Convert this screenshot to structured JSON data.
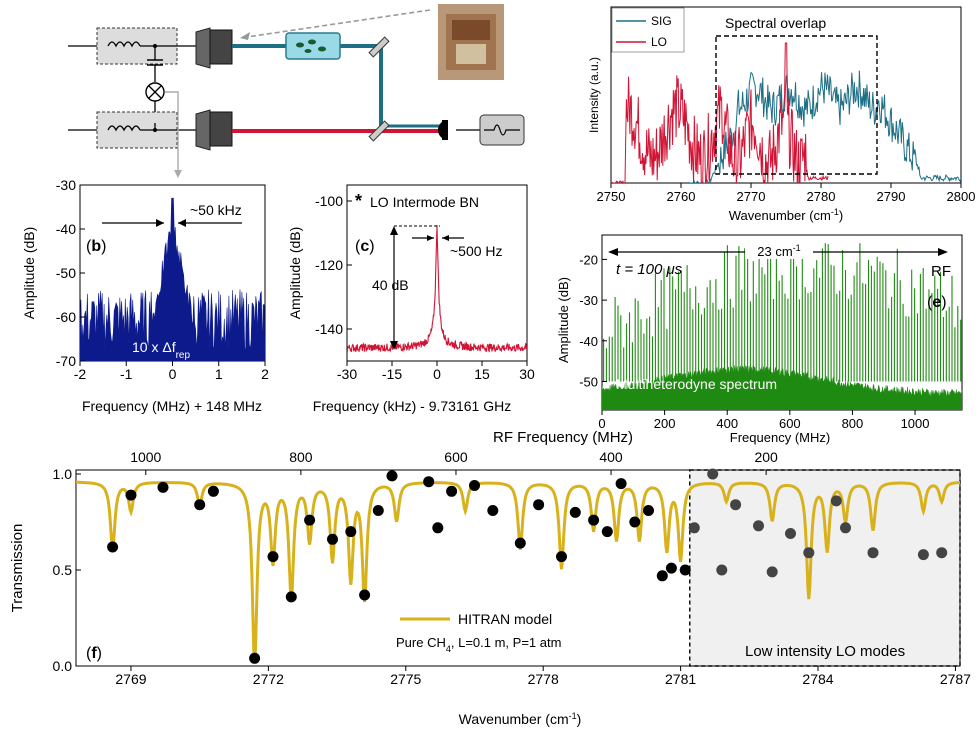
{
  "chart_data": [
    {
      "panel": "schematic",
      "type": "diagram",
      "legend": []
    },
    {
      "panel": "a",
      "type": "line",
      "xlabel": "Wavenumber (cm",
      "xlabel_sup": "-1",
      "xlabel_end": ")",
      "ylabel": "Intensity (a.u.)",
      "xlim": [
        2750,
        2800
      ],
      "xticks": [
        2750,
        2760,
        2770,
        2780,
        2790,
        2800
      ],
      "annotation": "Spectral overlap",
      "overlap_range": [
        2765,
        2788
      ],
      "series": [
        {
          "name": "SIG",
          "color": "#1e6e86"
        },
        {
          "name": "LO",
          "color": "#d11435"
        }
      ]
    },
    {
      "panel": "b",
      "type": "line",
      "label": "b",
      "xlabel": "Frequency (MHz) + 148 MHz",
      "ylabel": "Amplitude (dB)",
      "xlim": [
        -2,
        2
      ],
      "ylim": [
        -70,
        -30
      ],
      "xticks": [
        -2,
        -1,
        0,
        1,
        2
      ],
      "yticks": [
        -70,
        -60,
        -50,
        -40,
        -30
      ],
      "annotation_width": "~50 kHz",
      "annotation_inner": "10 x Δf",
      "annotation_inner_sub": "rep",
      "color": "#0d1a8c",
      "peak": {
        "x": 0,
        "y": -33
      },
      "floor": -62
    },
    {
      "panel": "c",
      "type": "line",
      "label": "c",
      "xlabel": "Frequency (kHz) - 9.73161 GHz",
      "ylabel": "Amplitude (dB)",
      "xlim": [
        -30,
        30
      ],
      "ylim": [
        -150,
        -95
      ],
      "xticks": [
        -30,
        -15,
        0,
        15,
        30
      ],
      "yticks": [
        -140,
        -120,
        -100
      ],
      "legend_title": "LO Intermode BN",
      "annotation_width": "~500 Hz",
      "annotation_height": "40 dB",
      "color": "#d11435",
      "peak": {
        "x": 0,
        "y": -107
      },
      "floor": -146
    },
    {
      "panel": "e",
      "type": "line",
      "label": "e",
      "xlabel": "Frequency (MHz)",
      "ylabel": "Amplitude (dB)",
      "top_axis_label": "RF Frequency (MHz)",
      "xlim": [
        0,
        1150
      ],
      "ylim": [
        -57,
        -14
      ],
      "xticks": [
        0,
        200,
        400,
        600,
        800,
        1000
      ],
      "yticks": [
        -50,
        -40,
        -30,
        -20
      ],
      "annotation_span": "23 cm",
      "annotation_span_sup": "-1",
      "annotation_time": "t = 100 μs",
      "annotation_rf": "RF",
      "annotation_spectrum": "Multiheterodyne spectrum",
      "color": "#1f8a12"
    },
    {
      "panel": "f",
      "type": "scatter",
      "label": "f",
      "xlabel": "Wavenumber (cm",
      "xlabel_sup": "-1",
      "xlabel_end": ")",
      "ylabel": "Transmission",
      "xlim": [
        2767.8,
        2787.1
      ],
      "ylim": [
        0,
        1.0
      ],
      "xticks": [
        2769,
        2772,
        2775,
        2778,
        2781,
        2784,
        2787
      ],
      "yticks": [
        0.0,
        0.5,
        1.0
      ],
      "top_xticks": [
        1000,
        800,
        600,
        400,
        200
      ],
      "legend_model": "HITRAN model",
      "conditions": "Pure CH",
      "conditions_sub": "4",
      "conditions_rest": ", L=0.1 m, P=1 atm",
      "shaded_label": "Low intensity LO modes",
      "shaded_range": [
        2781.2,
        2787.1
      ],
      "model_color": "#d8b21c",
      "points": [
        [
          2768.6,
          0.62
        ],
        [
          2769.0,
          0.89
        ],
        [
          2769.7,
          0.93
        ],
        [
          2770.5,
          0.84
        ],
        [
          2770.8,
          0.91
        ],
        [
          2771.7,
          0.04
        ],
        [
          2772.1,
          0.57
        ],
        [
          2772.5,
          0.36
        ],
        [
          2772.9,
          0.76
        ],
        [
          2773.4,
          0.66
        ],
        [
          2773.8,
          0.7
        ],
        [
          2774.1,
          0.37
        ],
        [
          2774.4,
          0.81
        ],
        [
          2774.7,
          0.99
        ],
        [
          2775.5,
          0.96
        ],
        [
          2775.7,
          0.72
        ],
        [
          2776.0,
          0.91
        ],
        [
          2776.5,
          0.94
        ],
        [
          2776.9,
          0.81
        ],
        [
          2777.5,
          0.64
        ],
        [
          2777.9,
          0.84
        ],
        [
          2778.4,
          0.57
        ],
        [
          2778.7,
          0.8
        ],
        [
          2779.1,
          0.76
        ],
        [
          2779.4,
          0.7
        ],
        [
          2779.7,
          0.95
        ],
        [
          2780.0,
          0.75
        ],
        [
          2780.3,
          0.81
        ],
        [
          2780.6,
          0.47
        ],
        [
          2780.8,
          0.51
        ],
        [
          2781.1,
          0.5
        ],
        [
          2781.3,
          0.72
        ],
        [
          2781.7,
          1.0
        ],
        [
          2781.9,
          0.5
        ],
        [
          2782.2,
          0.84
        ],
        [
          2782.7,
          0.73
        ],
        [
          2783.0,
          0.49
        ],
        [
          2783.4,
          0.69
        ],
        [
          2783.8,
          0.59
        ],
        [
          2784.4,
          0.86
        ],
        [
          2784.6,
          0.72
        ],
        [
          2785.2,
          0.59
        ],
        [
          2786.3,
          0.58
        ],
        [
          2786.7,
          0.59
        ]
      ]
    }
  ]
}
